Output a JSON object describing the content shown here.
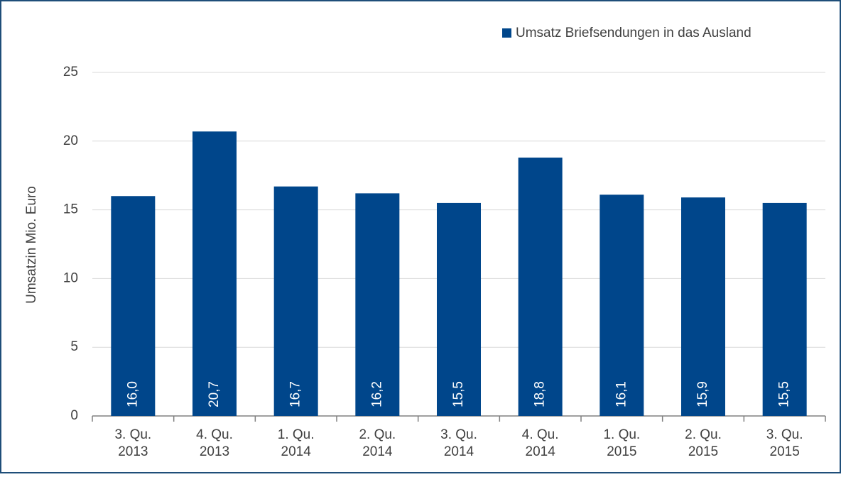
{
  "chart_data": {
    "type": "bar",
    "y_label": "Umsatzin Mio. Euro",
    "categories": [
      [
        "3. Qu.",
        "2013"
      ],
      [
        "4. Qu.",
        "2013"
      ],
      [
        "1. Qu.",
        "2014"
      ],
      [
        "2. Qu.",
        "2014"
      ],
      [
        "3. Qu.",
        "2014"
      ],
      [
        "4. Qu.",
        "2014"
      ],
      [
        "1. Qu.",
        "2015"
      ],
      [
        "2. Qu.",
        "2015"
      ],
      [
        "3. Qu.",
        "2015"
      ]
    ],
    "series": [
      {
        "name": "Umsatz Briefsendungen in das Ausland",
        "color": "#00468b",
        "values": [
          16.0,
          20.7,
          16.7,
          16.2,
          15.5,
          18.8,
          16.1,
          15.9,
          15.5
        ],
        "value_labels": [
          "16,0",
          "20,7",
          "16,7",
          "16,2",
          "15,5",
          "18,8",
          "16,1",
          "15,9",
          "15,5"
        ]
      }
    ],
    "ylim": [
      0,
      25
    ],
    "yticks": [
      0,
      5,
      10,
      15,
      20,
      25
    ],
    "grid": true,
    "legend": "top-right"
  }
}
